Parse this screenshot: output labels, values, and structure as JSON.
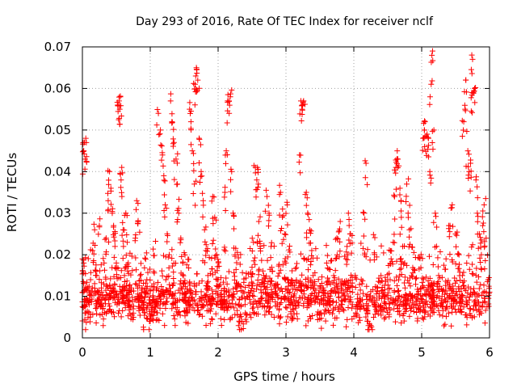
{
  "chart_data": {
    "type": "scatter",
    "title": "Day 293 of 2016, Rate Of TEC Index for receiver nclf",
    "xlabel": "GPS time / hours",
    "ylabel": "ROTI / TECUs",
    "xlim": [
      0,
      6
    ],
    "ylim": [
      0,
      0.07
    ],
    "xticks": [
      "0",
      "1",
      "2",
      "3",
      "4",
      "5",
      "6"
    ],
    "yticks": [
      "0",
      "0.01",
      "0.02",
      "0.03",
      "0.04",
      "0.05",
      "0.06",
      "0.07"
    ],
    "xtick_values": [
      0,
      1,
      2,
      3,
      4,
      5,
      6
    ],
    "ytick_values": [
      0,
      0.01,
      0.02,
      0.03,
      0.04,
      0.05,
      0.06,
      0.07
    ],
    "grid": true,
    "marker": "+",
    "series": [
      {
        "name": "ROTI",
        "color": "#ff0000",
        "points": [
          [
            0.0,
            0.019
          ],
          [
            0.02,
            0.045
          ],
          [
            0.03,
            0.047
          ],
          [
            0.04,
            0.043
          ],
          [
            0.05,
            0.048
          ],
          [
            0.02,
            0.018
          ],
          [
            0.05,
            0.006
          ],
          [
            0.08,
            0.012
          ],
          [
            0.1,
            0.008
          ],
          [
            0.12,
            0.014
          ],
          [
            0.15,
            0.021
          ],
          [
            0.18,
            0.026
          ],
          [
            0.2,
            0.016
          ],
          [
            0.22,
            0.009
          ],
          [
            0.25,
            0.027
          ],
          [
            0.28,
            0.012
          ],
          [
            0.3,
            0.007
          ],
          [
            0.32,
            0.018
          ],
          [
            0.35,
            0.024
          ],
          [
            0.38,
            0.033
          ],
          [
            0.4,
            0.04
          ],
          [
            0.42,
            0.036
          ],
          [
            0.44,
            0.03
          ],
          [
            0.46,
            0.027
          ],
          [
            0.48,
            0.022
          ],
          [
            0.5,
            0.018
          ],
          [
            0.52,
            0.056
          ],
          [
            0.54,
            0.057
          ],
          [
            0.55,
            0.055
          ],
          [
            0.56,
            0.058
          ],
          [
            0.57,
            0.038
          ],
          [
            0.58,
            0.041
          ],
          [
            0.6,
            0.026
          ],
          [
            0.62,
            0.015
          ],
          [
            0.64,
            0.03
          ],
          [
            0.66,
            0.023
          ],
          [
            0.68,
            0.011
          ],
          [
            0.7,
            0.009
          ],
          [
            0.72,
            0.012
          ],
          [
            0.75,
            0.007
          ],
          [
            0.78,
            0.024
          ],
          [
            0.8,
            0.033
          ],
          [
            0.82,
            0.028
          ],
          [
            0.85,
            0.015
          ],
          [
            0.88,
            0.012
          ],
          [
            0.9,
            0.008
          ],
          [
            0.92,
            0.006
          ],
          [
            0.95,
            0.014
          ],
          [
            1.0,
            0.004
          ],
          [
            1.05,
            0.009
          ],
          [
            1.1,
            0.012
          ],
          [
            1.12,
            0.054
          ],
          [
            1.15,
            0.05
          ],
          [
            1.18,
            0.044
          ],
          [
            1.2,
            0.039
          ],
          [
            1.22,
            0.032
          ],
          [
            1.25,
            0.025
          ],
          [
            1.28,
            0.02
          ],
          [
            1.3,
            0.057
          ],
          [
            1.32,
            0.052
          ],
          [
            1.35,
            0.047
          ],
          [
            1.38,
            0.043
          ],
          [
            1.4,
            0.037
          ],
          [
            1.42,
            0.03
          ],
          [
            1.45,
            0.024
          ],
          [
            1.48,
            0.018
          ],
          [
            1.5,
            0.013
          ],
          [
            1.52,
            0.009
          ],
          [
            1.55,
            0.006
          ],
          [
            1.58,
            0.055
          ],
          [
            1.6,
            0.052
          ],
          [
            1.62,
            0.045
          ],
          [
            1.65,
            0.037
          ],
          [
            1.66,
            0.061
          ],
          [
            1.67,
            0.063
          ],
          [
            1.68,
            0.065
          ],
          [
            1.7,
            0.062
          ],
          [
            1.72,
            0.048
          ],
          [
            1.75,
            0.04
          ],
          [
            1.78,
            0.033
          ],
          [
            1.8,
            0.026
          ],
          [
            1.82,
            0.021
          ],
          [
            1.85,
            0.015
          ],
          [
            1.88,
            0.01
          ],
          [
            1.9,
            0.007
          ],
          [
            1.92,
            0.034
          ],
          [
            1.95,
            0.029
          ],
          [
            1.98,
            0.02
          ],
          [
            2.0,
            0.014
          ],
          [
            2.05,
            0.01
          ],
          [
            2.1,
            0.035
          ],
          [
            2.12,
            0.045
          ],
          [
            2.14,
            0.057
          ],
          [
            2.16,
            0.057
          ],
          [
            2.18,
            0.058
          ],
          [
            2.2,
            0.04
          ],
          [
            2.22,
            0.03
          ],
          [
            2.25,
            0.02
          ],
          [
            2.28,
            0.013
          ],
          [
            2.3,
            0.008
          ],
          [
            2.32,
            0.005
          ],
          [
            2.35,
            0.004
          ],
          [
            2.4,
            0.006
          ],
          [
            2.45,
            0.011
          ],
          [
            2.5,
            0.017
          ],
          [
            2.52,
            0.023
          ],
          [
            2.55,
            0.041
          ],
          [
            2.57,
            0.038
          ],
          [
            2.58,
            0.041
          ],
          [
            2.6,
            0.028
          ],
          [
            2.62,
            0.022
          ],
          [
            2.65,
            0.014
          ],
          [
            2.7,
            0.009
          ],
          [
            2.72,
            0.034
          ],
          [
            2.75,
            0.03
          ],
          [
            2.78,
            0.022
          ],
          [
            2.8,
            0.016
          ],
          [
            2.85,
            0.012
          ],
          [
            2.9,
            0.007
          ],
          [
            2.92,
            0.035
          ],
          [
            2.95,
            0.031
          ],
          [
            2.98,
            0.025
          ],
          [
            3.0,
            0.018
          ],
          [
            3.02,
            0.032
          ],
          [
            3.05,
            0.011
          ],
          [
            3.1,
            0.007
          ],
          [
            3.15,
            0.009
          ],
          [
            3.2,
            0.044
          ],
          [
            3.22,
            0.057
          ],
          [
            3.24,
            0.056
          ],
          [
            3.26,
            0.057
          ],
          [
            3.3,
            0.035
          ],
          [
            3.32,
            0.03
          ],
          [
            3.35,
            0.026
          ],
          [
            3.38,
            0.021
          ],
          [
            3.4,
            0.015
          ],
          [
            3.45,
            0.01
          ],
          [
            3.5,
            0.006
          ],
          [
            3.55,
            0.012
          ],
          [
            3.6,
            0.018
          ],
          [
            3.65,
            0.009
          ],
          [
            3.7,
            0.007
          ],
          [
            3.75,
            0.024
          ],
          [
            3.8,
            0.028
          ],
          [
            3.85,
            0.013
          ],
          [
            3.9,
            0.022
          ],
          [
            3.92,
            0.03
          ],
          [
            3.95,
            0.025
          ],
          [
            3.98,
            0.008
          ],
          [
            4.05,
            0.007
          ],
          [
            4.1,
            0.009
          ],
          [
            4.12,
            0.013
          ],
          [
            4.15,
            0.03
          ],
          [
            4.18,
            0.042
          ],
          [
            4.2,
            0.006
          ],
          [
            4.25,
            0.003
          ],
          [
            4.3,
            0.008
          ],
          [
            4.35,
            0.012
          ],
          [
            4.4,
            0.015
          ],
          [
            4.45,
            0.01
          ],
          [
            4.5,
            0.014
          ],
          [
            4.55,
            0.019
          ],
          [
            4.58,
            0.023
          ],
          [
            4.6,
            0.034
          ],
          [
            4.62,
            0.041
          ],
          [
            4.64,
            0.045
          ],
          [
            4.65,
            0.043
          ],
          [
            4.68,
            0.036
          ],
          [
            4.7,
            0.029
          ],
          [
            4.72,
            0.022
          ],
          [
            4.75,
            0.018
          ],
          [
            4.78,
            0.037
          ],
          [
            4.8,
            0.03
          ],
          [
            4.82,
            0.026
          ],
          [
            4.85,
            0.015
          ],
          [
            4.9,
            0.01
          ],
          [
            4.95,
            0.007
          ],
          [
            5.0,
            0.012
          ],
          [
            5.02,
            0.048
          ],
          [
            5.04,
            0.05
          ],
          [
            5.05,
            0.052
          ],
          [
            5.08,
            0.049
          ],
          [
            5.1,
            0.048
          ],
          [
            5.12,
            0.04
          ],
          [
            5.14,
            0.061
          ],
          [
            5.16,
            0.069
          ],
          [
            5.18,
            0.05
          ],
          [
            5.2,
            0.03
          ],
          [
            5.22,
            0.022
          ],
          [
            5.25,
            0.015
          ],
          [
            5.3,
            0.01
          ],
          [
            5.35,
            0.007
          ],
          [
            5.4,
            0.027
          ],
          [
            5.45,
            0.032
          ],
          [
            5.5,
            0.025
          ],
          [
            5.55,
            0.02
          ],
          [
            5.6,
            0.015
          ],
          [
            5.62,
            0.052
          ],
          [
            5.64,
            0.055
          ],
          [
            5.65,
            0.062
          ],
          [
            5.68,
            0.045
          ],
          [
            5.7,
            0.04
          ],
          [
            5.72,
            0.042
          ],
          [
            5.74,
            0.059
          ],
          [
            5.75,
            0.067
          ],
          [
            5.76,
            0.059
          ],
          [
            5.78,
            0.06
          ],
          [
            5.8,
            0.038
          ],
          [
            5.82,
            0.03
          ],
          [
            5.85,
            0.025
          ],
          [
            5.88,
            0.02
          ],
          [
            5.9,
            0.027
          ],
          [
            5.92,
            0.032
          ],
          [
            5.95,
            0.024
          ],
          [
            5.98,
            0.014
          ],
          [
            6.0,
            0.011
          ]
        ],
        "dense_band": {
          "description": "dense baseline cluster",
          "segments": [
            {
              "x": [
                0.0,
                0.95
              ],
              "y_center": 0.009,
              "y_spread": 0.006,
              "count": 260
            },
            {
              "x": [
                0.95,
                2.3
              ],
              "y_center": 0.009,
              "y_spread": 0.007,
              "count": 360
            },
            {
              "x": [
                2.3,
                3.98
              ],
              "y_center": 0.01,
              "y_spread": 0.008,
              "count": 430
            },
            {
              "x": [
                4.02,
                6.0
              ],
              "y_center": 0.009,
              "y_spread": 0.007,
              "count": 520
            }
          ]
        }
      }
    ]
  }
}
